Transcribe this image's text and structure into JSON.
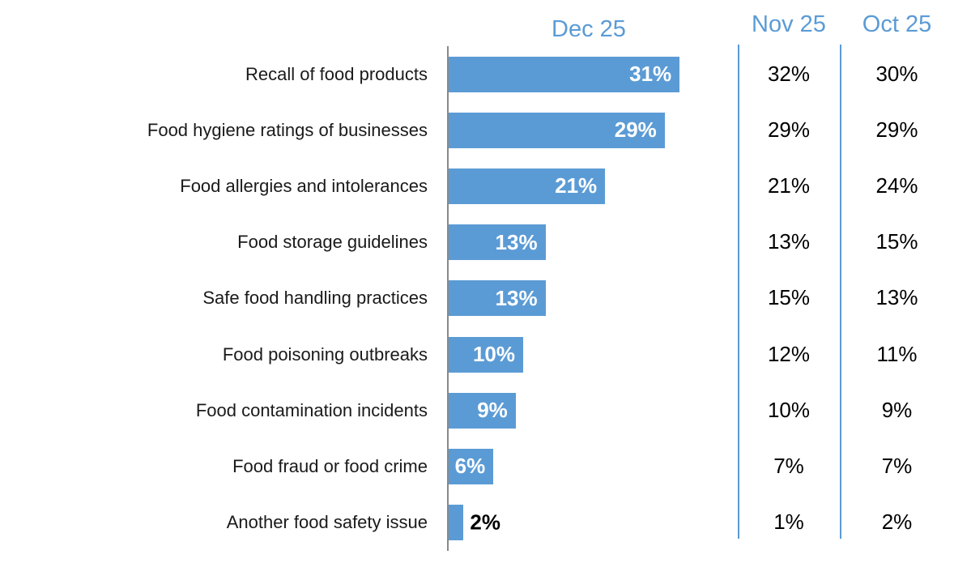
{
  "chart_data": {
    "type": "bar",
    "orientation": "horizontal",
    "title": "",
    "categories": [
      "Recall of food products",
      "Food hygiene ratings of businesses",
      "Food allergies and intolerances",
      "Food storage guidelines",
      "Safe food handling practices",
      "Food poisoning outbreaks",
      "Food contamination incidents",
      "Food fraud or food crime",
      "Another food safety issue"
    ],
    "series": [
      {
        "name": "Dec 25",
        "display": "bars",
        "values": [
          31,
          29,
          21,
          13,
          13,
          10,
          9,
          6,
          2
        ]
      },
      {
        "name": "Nov 25",
        "display": "text-column",
        "values": [
          32,
          29,
          21,
          13,
          15,
          12,
          10,
          7,
          1
        ]
      },
      {
        "name": "Oct 25",
        "display": "text-column",
        "values": [
          30,
          29,
          24,
          15,
          13,
          11,
          9,
          7,
          2
        ]
      }
    ],
    "value_suffix": "%",
    "xlim": [
      0,
      35
    ],
    "grid": false,
    "legend_position": "top-as-column-headers",
    "bar_color": "#5B9BD5",
    "header_color": "#5B9BD5",
    "separator_color": "#5B9BD5",
    "axis_line_color": "#898989",
    "bar_label_color_inside": "#ffffff",
    "bar_label_color_outside": "#000000",
    "category_label_color": "#1a1a1a",
    "value_column_color": "#000000"
  }
}
